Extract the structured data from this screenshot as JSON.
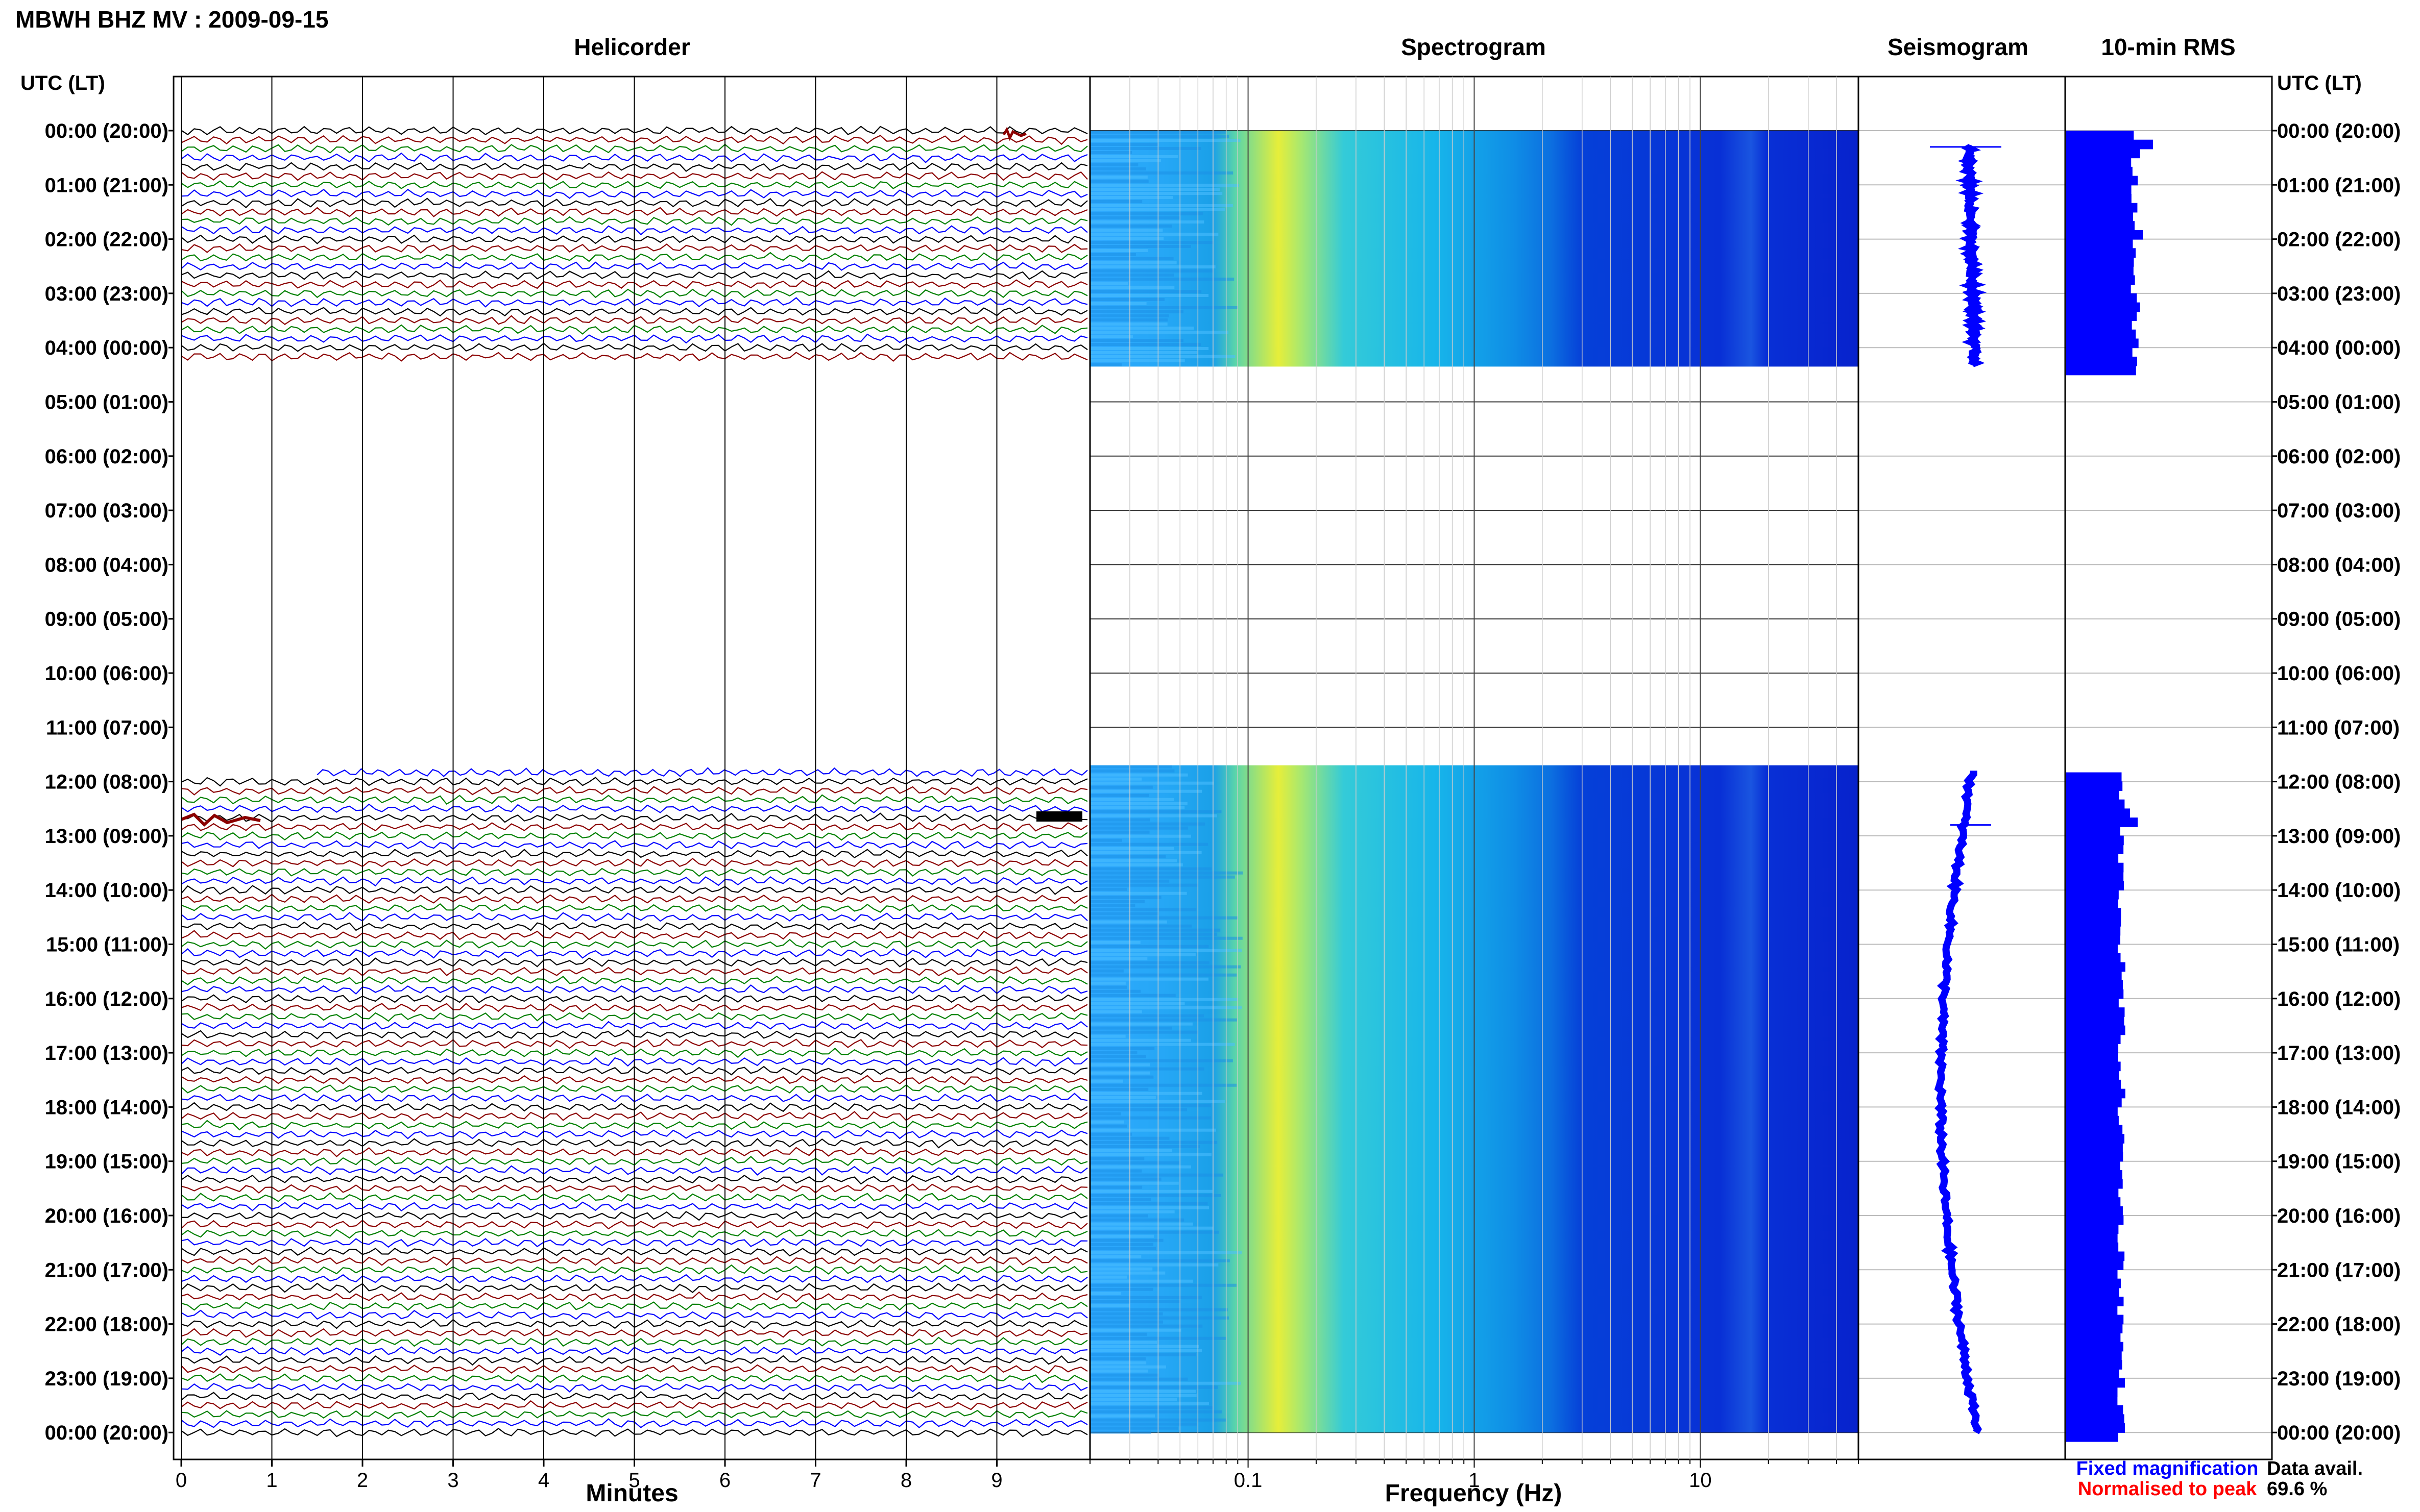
{
  "title": "MBWH BHZ MV : 2009-09-15",
  "left_axis_title": "UTC (LT)",
  "right_axis_title": "UTC (LT)",
  "time_labels": [
    "00:00 (20:00)",
    "01:00 (21:00)",
    "02:00 (22:00)",
    "03:00 (23:00)",
    "04:00 (00:00)",
    "05:00 (01:00)",
    "06:00 (02:00)",
    "07:00 (03:00)",
    "08:00 (04:00)",
    "09:00 (05:00)",
    "10:00 (06:00)",
    "11:00 (07:00)",
    "12:00 (08:00)",
    "13:00 (09:00)",
    "14:00 (10:00)",
    "15:00 (11:00)",
    "16:00 (12:00)",
    "17:00 (13:00)",
    "18:00 (14:00)",
    "19:00 (15:00)",
    "20:00 (16:00)",
    "21:00 (17:00)",
    "22:00 (18:00)",
    "23:00 (19:00)",
    "00:00 (20:00)"
  ],
  "panels": {
    "helicorder": {
      "title": "Helicorder",
      "xlabel": "Minutes",
      "ticks": [
        "0",
        "1",
        "2",
        "3",
        "4",
        "5",
        "6",
        "7",
        "8",
        "9"
      ]
    },
    "spectrogram": {
      "title": "Spectrogram",
      "xlabel": "Frequency (Hz)",
      "ticks": [
        "0.1",
        "1",
        "10"
      ]
    },
    "seismogram": {
      "title": "Seismogram"
    },
    "rms": {
      "title": "10-min RMS"
    }
  },
  "legend": {
    "fixed": "Fixed magnification",
    "normalised": "Normalised to peak"
  },
  "availability": {
    "label": "Data avail.",
    "value": "69.6 %"
  },
  "colors": {
    "trace_cycle": [
      "#000000",
      "#8b0000",
      "#008000",
      "#0000ff"
    ],
    "fixed": "#0000ff",
    "normalised": "#ff0000",
    "rms_bar": "#0000ff",
    "spec_low": "#0000cc",
    "spec_high": "#ffff00"
  },
  "chart_data": {
    "type": "heatmap",
    "y_axis": "Time (UTC), 00:00 to 24:00",
    "helicorder": {
      "x_range_minutes": [
        0,
        10
      ],
      "lines_per_hour": 6,
      "data_segments_utc": [
        [
          "00:00",
          "04:20"
        ],
        [
          "11:50",
          "24:00"
        ]
      ]
    },
    "spectrogram": {
      "x_scale": "log",
      "x_range_hz": [
        0.02,
        50
      ],
      "dominant_band_hz": 0.2
    },
    "rms": {
      "bins_minutes": 10,
      "data_segments_utc": [
        [
          "00:00",
          "04:30"
        ],
        [
          "11:50",
          "24:00"
        ]
      ]
    },
    "data_availability_percent": 69.6
  }
}
